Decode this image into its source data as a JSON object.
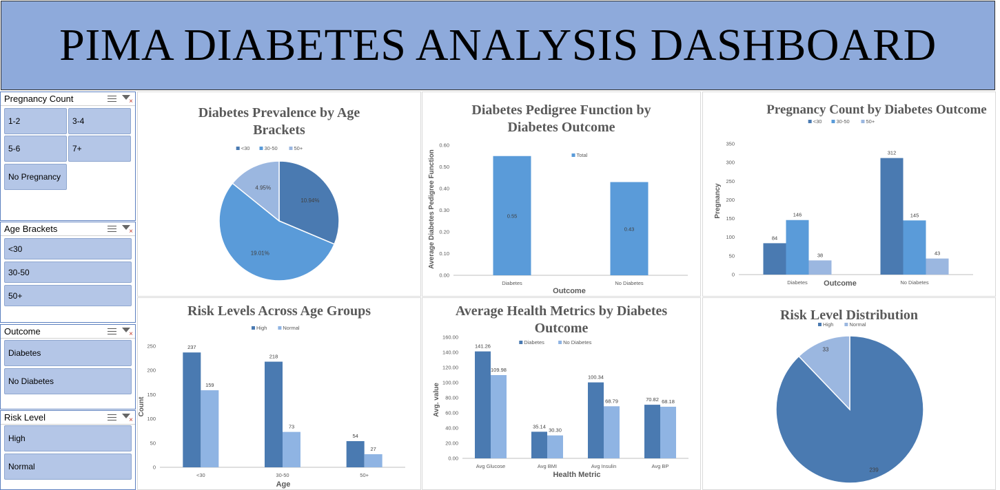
{
  "header": {
    "title": "PIMA DIABETES ANALYSIS DASHBOARD"
  },
  "slicers": {
    "pregnancy": {
      "title": "Pregnancy Count",
      "items": [
        "1-2",
        "3-4",
        "5-6",
        "7+",
        "No Pregnancy"
      ]
    },
    "age": {
      "title": "Age Brackets",
      "items": [
        "<30",
        "30-50",
        "50+"
      ]
    },
    "outcome": {
      "title": "Outcome",
      "items": [
        "Diabetes",
        "No Diabetes"
      ]
    },
    "risk": {
      "title": "Risk Level",
      "items": [
        "High",
        "Normal"
      ]
    }
  },
  "colors": {
    "dark": "#4a7ab1",
    "mid": "#5a9bd9",
    "light": "#9bb7e0",
    "bar_mid": "#5b9bd5",
    "bar_light": "#8fb4e3",
    "header_bg": "#8eaadb",
    "slicer_btn": "#b4c6e7"
  },
  "chart_data": [
    {
      "id": "age_pie",
      "type": "pie",
      "title": "Diabetes Prevalence by Age Brackets",
      "categories": [
        "<30",
        "30-50",
        "50+"
      ],
      "values": [
        10.94,
        19.01,
        4.95
      ],
      "labels": [
        "10.94%",
        "19.01%",
        "4.95%"
      ],
      "legend": "top"
    },
    {
      "id": "pedigree_bar",
      "type": "bar",
      "title": "Diabetes Pedigree Function by Diabetes Outcome",
      "categories": [
        "Diabetes",
        "No Diabetes"
      ],
      "series": [
        {
          "name": "Total",
          "values": [
            0.55,
            0.43
          ],
          "labels": [
            "0.55",
            "0.43"
          ]
        }
      ],
      "xlabel": "Outcome",
      "ylabel": "Average Diabetes Pedigree Function",
      "ylim": [
        0,
        0.6
      ],
      "yticks": [
        "0.00",
        "0.10",
        "0.20",
        "0.30",
        "0.40",
        "0.50",
        "0.60"
      ],
      "legend": "top"
    },
    {
      "id": "pregnancy_bar",
      "type": "bar",
      "title": "Pregnancy Count by Diabetes Outcome",
      "categories": [
        "Diabetes",
        "No Diabetes"
      ],
      "series": [
        {
          "name": "<30",
          "values": [
            84,
            312
          ]
        },
        {
          "name": "30-50",
          "values": [
            146,
            145
          ]
        },
        {
          "name": "50+",
          "values": [
            38,
            43
          ]
        }
      ],
      "xlabel": "Outcome",
      "ylabel": "Pregnancy",
      "ylim": [
        0,
        350
      ],
      "yticks": [
        "0",
        "50",
        "100",
        "150",
        "200",
        "250",
        "300",
        "350"
      ],
      "legend": "top"
    },
    {
      "id": "risk_age_bar",
      "type": "bar",
      "title": "Risk Levels Across Age Groups",
      "categories": [
        "<30",
        "30-50",
        "50+"
      ],
      "series": [
        {
          "name": "High",
          "values": [
            237,
            218,
            54
          ]
        },
        {
          "name": "Normal",
          "values": [
            159,
            73,
            27
          ]
        }
      ],
      "xlabel": "Age",
      "ylabel": "Count",
      "ylim": [
        0,
        250
      ],
      "yticks": [
        "0",
        "50",
        "100",
        "150",
        "200",
        "250"
      ],
      "legend": "top"
    },
    {
      "id": "metrics_bar",
      "type": "bar",
      "title": "Average Health Metrics by Diabetes Outcome",
      "categories": [
        "Avg Glucose",
        "Avg BMI",
        "Avg Insulin",
        "Avg BP"
      ],
      "series": [
        {
          "name": "Diabetes",
          "values": [
            141.26,
            35.14,
            100.34,
            70.82
          ],
          "labels": [
            "141.26",
            "35.14",
            "100.34",
            "70.82"
          ]
        },
        {
          "name": "No Diabetes",
          "values": [
            109.98,
            30.3,
            68.79,
            68.18
          ],
          "labels": [
            "109.98",
            "30.30",
            "68.79",
            "68.18"
          ]
        }
      ],
      "xlabel": "Health Metric",
      "ylabel": "Avg. value",
      "ylim": [
        0,
        160
      ],
      "yticks": [
        "0.00",
        "20.00",
        "40.00",
        "60.00",
        "80.00",
        "100.00",
        "120.00",
        "140.00",
        "160.00"
      ],
      "legend": "top"
    },
    {
      "id": "risk_pie",
      "type": "pie",
      "title": "Risk Level Distribution",
      "categories": [
        "High",
        "Normal"
      ],
      "values": [
        239,
        33
      ],
      "labels": [
        "239",
        "33"
      ],
      "legend": "top"
    }
  ]
}
